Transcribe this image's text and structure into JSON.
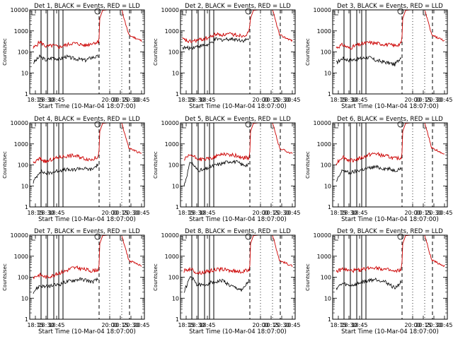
{
  "chart_data": {
    "type": "line",
    "layout": "3x3 grid of log-scale count-rate plots",
    "ylabel": "Counts/sec",
    "yscale": "log",
    "ylim": [
      1,
      10000
    ],
    "yticks": [
      "1",
      "10",
      "100",
      "1000",
      "10000"
    ],
    "xlabel": "Start Time (10-Mar-04 18:07:00)",
    "xlim_minutes_after_start": [
      0,
      162
    ],
    "xticks": [
      {
        "label": "18:15",
        "t": 8
      },
      {
        "label": "18:30",
        "t": 23
      },
      {
        "label": "18:45",
        "t": 38
      },
      {
        "label": "20:00",
        "t": 113
      },
      {
        "label": "20:15",
        "t": 128
      },
      {
        "label": "20:30",
        "t": 143
      },
      {
        "label": "20:45",
        "t": 158
      }
    ],
    "markers": {
      "solid_lines_t": [
        16,
        25,
        34,
        41,
        47
      ],
      "dashed_lines_t": [
        98,
        141
      ],
      "dotted_lines_t": [
        113,
        130
      ],
      "circle_t": 96,
      "bracket_t": 128
    },
    "colors": {
      "events": "#000000",
      "lld": "#cc0000",
      "axes": "#000000"
    },
    "panels": [
      {
        "title": "Det 1, BLACK = Events, RED = LLD",
        "start": 5,
        "events": [
          30,
          60,
          40,
          55,
          45,
          60,
          50,
          45,
          40,
          55,
          60
        ],
        "lld": [
          150,
          300,
          180,
          200,
          170,
          210,
          260,
          240,
          200,
          260,
          300
        ]
      },
      {
        "title": "Det 2, BLACK = Events, RED = LLD",
        "start": 3,
        "events": [
          160,
          150,
          180,
          200,
          220,
          400,
          380,
          420,
          400,
          350,
          380
        ],
        "lld": [
          400,
          300,
          350,
          400,
          480,
          700,
          650,
          700,
          650,
          600,
          800
        ]
      },
      {
        "title": "Det 3, BLACK = Events, RED = LLD",
        "start": 5,
        "events": [
          30,
          50,
          40,
          45,
          50,
          55,
          40,
          35,
          30,
          25,
          60
        ],
        "lld": [
          160,
          220,
          150,
          200,
          240,
          280,
          260,
          240,
          220,
          200,
          250
        ]
      },
      {
        "title": "Det 4, BLACK = Events, RED = LLD",
        "start": 5,
        "events": [
          15,
          50,
          40,
          45,
          55,
          60,
          55,
          70,
          65,
          60,
          110
        ],
        "lld": [
          120,
          200,
          140,
          190,
          230,
          260,
          280,
          250,
          200,
          180,
          250
        ]
      },
      {
        "title": "Det 5, BLACK = Events, RED = LLD",
        "start": 5,
        "events": [
          10,
          150,
          60,
          55,
          80,
          100,
          120,
          150,
          140,
          100,
          100
        ],
        "lld": [
          170,
          300,
          200,
          180,
          200,
          260,
          350,
          300,
          280,
          220,
          220
        ]
      },
      {
        "title": "Det 6, BLACK = Events, RED = LLD",
        "start": 5,
        "events": [
          15,
          60,
          40,
          50,
          60,
          70,
          80,
          70,
          65,
          55,
          70
        ],
        "lld": [
          120,
          250,
          160,
          180,
          220,
          300,
          350,
          280,
          250,
          200,
          210
        ]
      },
      {
        "title": "Det 7, BLACK = Events, RED = LLD",
        "start": 5,
        "events": [
          20,
          40,
          35,
          40,
          45,
          60,
          70,
          80,
          75,
          60,
          80
        ],
        "lld": [
          100,
          130,
          100,
          120,
          160,
          200,
          280,
          270,
          230,
          200,
          230
        ]
      },
      {
        "title": "Det 8, BLACK = Events, RED = LLD",
        "start": 5,
        "events": [
          20,
          110,
          45,
          40,
          55,
          60,
          70,
          40,
          30,
          25,
          70
        ],
        "lld": [
          200,
          250,
          160,
          170,
          200,
          230,
          240,
          210,
          190,
          180,
          230
        ]
      },
      {
        "title": "Det 9, BLACK = Events, RED = LLD",
        "start": 5,
        "events": [
          30,
          50,
          40,
          45,
          60,
          70,
          80,
          70,
          50,
          30,
          60
        ],
        "lld": [
          180,
          250,
          200,
          210,
          230,
          280,
          300,
          250,
          220,
          180,
          230
        ]
      }
    ]
  }
}
